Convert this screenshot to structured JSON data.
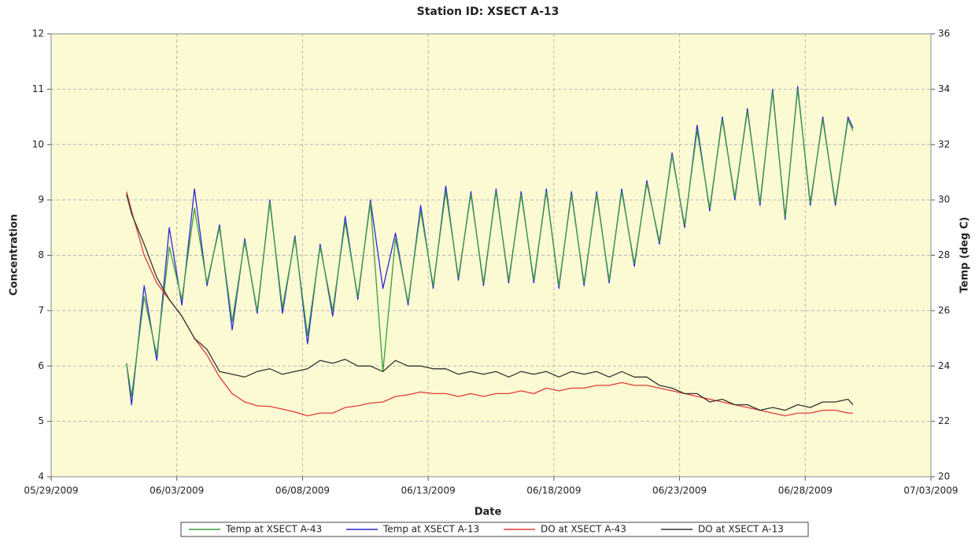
{
  "chart_data": {
    "type": "line",
    "title": "Station ID: XSECT A-13",
    "xlabel": "Date",
    "ylabel": "Concentration",
    "y2label": "Temp  (deg C)",
    "x": [
      3.0,
      3.2,
      3.7,
      4.2,
      4.7,
      5.2,
      5.7,
      6.2,
      6.7,
      7.2,
      7.7,
      8.2,
      8.7,
      9.2,
      9.7,
      10.2,
      10.7,
      11.2,
      11.7,
      12.2,
      12.7,
      13.2,
      13.7,
      14.2,
      14.7,
      15.2,
      15.7,
      16.2,
      16.7,
      17.2,
      17.7,
      18.2,
      18.7,
      19.2,
      19.7,
      20.2,
      20.7,
      21.2,
      21.7,
      22.2,
      22.7,
      23.2,
      23.7,
      24.2,
      24.7,
      25.2,
      25.7,
      26.2,
      26.7,
      27.2,
      27.7,
      28.2,
      28.7,
      29.2,
      29.7,
      30.2,
      30.7,
      31.2,
      31.7,
      31.9
    ],
    "xlim": [
      0,
      35
    ],
    "xticks": [
      {
        "value": 0,
        "label": "05/29/2009"
      },
      {
        "value": 5,
        "label": "06/03/2009"
      },
      {
        "value": 10,
        "label": "06/08/2009"
      },
      {
        "value": 15,
        "label": "06/13/2009"
      },
      {
        "value": 20,
        "label": "06/18/2009"
      },
      {
        "value": 25,
        "label": "06/23/2009"
      },
      {
        "value": 30,
        "label": "06/28/2009"
      },
      {
        "value": 35,
        "label": "07/03/2009"
      }
    ],
    "ylim": [
      4,
      12
    ],
    "yticks": [
      4,
      5,
      6,
      7,
      8,
      9,
      10,
      11,
      12
    ],
    "y2lim": [
      20,
      36
    ],
    "y2ticks": [
      20,
      22,
      24,
      26,
      28,
      30,
      32,
      34,
      36
    ],
    "grid": true,
    "legend": "bottom",
    "series": [
      {
        "name": "Temp at XSECT A-43",
        "color": "#3c9e3c",
        "axis": "y2",
        "values": [
          24.1,
          22.9,
          26.5,
          24.4,
          28.3,
          26.4,
          29.7,
          27.0,
          29.0,
          25.6,
          28.5,
          26.0,
          29.9,
          26.1,
          28.6,
          25.1,
          28.3,
          26.0,
          29.2,
          26.5,
          29.9,
          23.8,
          28.6,
          26.3,
          29.6,
          26.9,
          30.3,
          27.2,
          30.2,
          27.0,
          30.3,
          27.1,
          30.2,
          27.1,
          30.3,
          26.9,
          30.2,
          27.0,
          30.2,
          27.1,
          30.3,
          27.7,
          30.6,
          28.5,
          31.6,
          29.1,
          32.5,
          29.7,
          32.9,
          30.1,
          33.2,
          29.9,
          33.9,
          29.4,
          34.0,
          29.9,
          32.9,
          29.9,
          32.9,
          32.5
        ]
      },
      {
        "name": "Temp at XSECT A-13",
        "color": "#2a2ad8",
        "axis": "y2",
        "values": [
          24.1,
          22.6,
          26.9,
          24.2,
          29.0,
          26.2,
          30.4,
          26.9,
          29.1,
          25.3,
          28.6,
          25.9,
          30.0,
          25.9,
          28.7,
          24.8,
          28.4,
          25.8,
          29.4,
          26.4,
          30.0,
          26.8,
          28.8,
          26.2,
          29.8,
          26.8,
          30.5,
          27.1,
          30.3,
          26.9,
          30.4,
          27.0,
          30.3,
          27.0,
          30.4,
          26.8,
          30.3,
          26.9,
          30.3,
          27.0,
          30.4,
          27.6,
          30.7,
          28.4,
          31.7,
          29.0,
          32.7,
          29.6,
          33.0,
          30.0,
          33.3,
          29.8,
          34.0,
          29.3,
          34.1,
          29.8,
          33.0,
          29.8,
          33.0,
          32.6
        ]
      },
      {
        "name": "DO at XSECT A-43",
        "color": "#e23b3b",
        "values": [
          9.15,
          8.8,
          8.0,
          7.5,
          7.2,
          6.9,
          6.5,
          6.2,
          5.8,
          5.5,
          5.35,
          5.28,
          5.27,
          5.22,
          5.17,
          5.1,
          5.15,
          5.15,
          5.25,
          5.28,
          5.33,
          5.35,
          5.45,
          5.48,
          5.53,
          5.5,
          5.5,
          5.45,
          5.5,
          5.45,
          5.5,
          5.5,
          5.55,
          5.5,
          5.6,
          5.55,
          5.6,
          5.6,
          5.65,
          5.65,
          5.7,
          5.65,
          5.65,
          5.6,
          5.55,
          5.5,
          5.45,
          5.4,
          5.35,
          5.3,
          5.25,
          5.2,
          5.15,
          5.1,
          5.15,
          5.15,
          5.2,
          5.2,
          5.15,
          5.15
        ]
      },
      {
        "name": "DO at XSECT A-13",
        "color": "#333333",
        "values": [
          9.1,
          8.75,
          8.2,
          7.6,
          7.2,
          6.9,
          6.5,
          6.3,
          5.9,
          5.85,
          5.8,
          5.9,
          5.95,
          5.85,
          5.9,
          5.95,
          6.1,
          6.05,
          6.12,
          6.0,
          6.0,
          5.9,
          6.1,
          6.0,
          6.0,
          5.95,
          5.95,
          5.85,
          5.9,
          5.85,
          5.9,
          5.8,
          5.9,
          5.85,
          5.9,
          5.8,
          5.9,
          5.85,
          5.9,
          5.8,
          5.9,
          5.8,
          5.8,
          5.65,
          5.6,
          5.5,
          5.5,
          5.35,
          5.4,
          5.3,
          5.3,
          5.2,
          5.25,
          5.2,
          5.3,
          5.25,
          5.35,
          5.35,
          5.4,
          5.3
        ]
      }
    ]
  }
}
